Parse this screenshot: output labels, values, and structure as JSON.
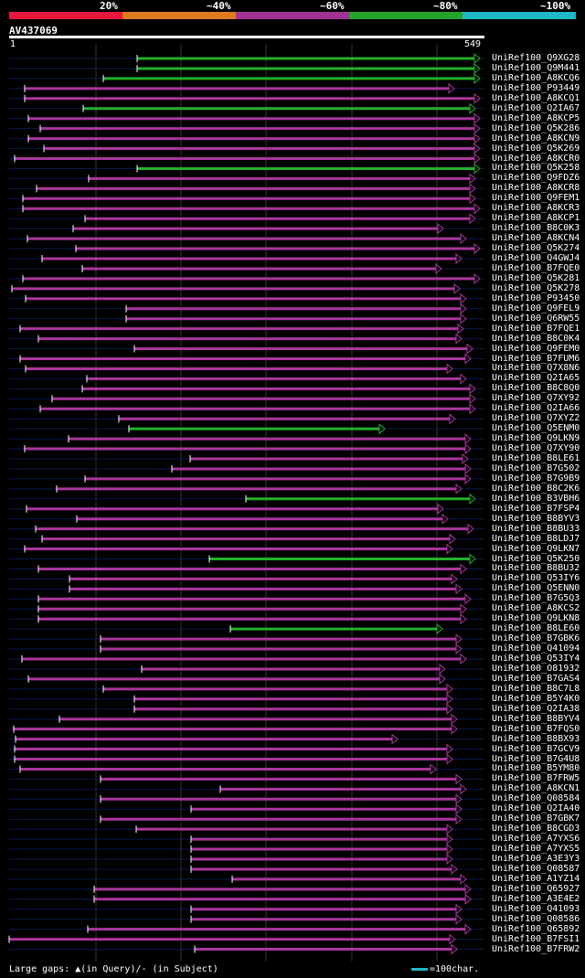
{
  "legend": {
    "segments": [
      {
        "label": "20%",
        "color": "#e8173d"
      },
      {
        "label": "~40%",
        "color": "#e07a1f"
      },
      {
        "label": "~60%",
        "color": "#a23293"
      },
      {
        "label": "~80%",
        "color": "#22a52a"
      },
      {
        "label": "~100%",
        "color": "#1fb8c6"
      }
    ]
  },
  "query": {
    "id": "AV437069",
    "start": "1",
    "end": "549"
  },
  "hits": [
    {
      "name": "UniRef100_Q9XG28",
      "start": 150,
      "end": 525,
      "color": "green"
    },
    {
      "name": "UniRef100_Q9M441",
      "start": 150,
      "end": 525,
      "color": "green"
    },
    {
      "name": "UniRef100_A8KCQ6",
      "start": 113,
      "end": 525,
      "color": "green"
    },
    {
      "name": "UniRef100_P93449",
      "start": 27,
      "end": 497,
      "color": "purple"
    },
    {
      "name": "UniRef100_A8KCQ1",
      "start": 27,
      "end": 525,
      "color": "purple"
    },
    {
      "name": "UniRef100_Q2IA67",
      "start": 91,
      "end": 520,
      "color": "green"
    },
    {
      "name": "UniRef100_A8KCP5",
      "start": 31,
      "end": 525,
      "color": "purple"
    },
    {
      "name": "UniRef100_Q5K286",
      "start": 44,
      "end": 525,
      "color": "purple"
    },
    {
      "name": "UniRef100_A8KCN9",
      "start": 31,
      "end": 525,
      "color": "purple"
    },
    {
      "name": "UniRef100_Q5K269",
      "start": 48,
      "end": 525,
      "color": "purple"
    },
    {
      "name": "UniRef100_A8KCR0",
      "start": 16,
      "end": 525,
      "color": "purple"
    },
    {
      "name": "UniRef100_Q5K258",
      "start": 150,
      "end": 525,
      "color": "green"
    },
    {
      "name": "UniRef100_Q9FDZ6",
      "start": 97,
      "end": 520,
      "color": "purple"
    },
    {
      "name": "UniRef100_A8KCR8",
      "start": 40,
      "end": 520,
      "color": "purple"
    },
    {
      "name": "UniRef100_Q9FEM1",
      "start": 25,
      "end": 520,
      "color": "purple"
    },
    {
      "name": "UniRef100_A8KCR3",
      "start": 25,
      "end": 525,
      "color": "purple"
    },
    {
      "name": "UniRef100_A8KCP1",
      "start": 93,
      "end": 520,
      "color": "purple"
    },
    {
      "name": "UniRef100_B8C0K3",
      "start": 80,
      "end": 485,
      "color": "purple"
    },
    {
      "name": "UniRef100_A8KCN4",
      "start": 30,
      "end": 510,
      "color": "purple"
    },
    {
      "name": "UniRef100_Q5K274",
      "start": 83,
      "end": 525,
      "color": "purple"
    },
    {
      "name": "UniRef100_Q4GWJ4",
      "start": 46,
      "end": 505,
      "color": "purple"
    },
    {
      "name": "UniRef100_B7FQE0",
      "start": 90,
      "end": 483,
      "color": "purple"
    },
    {
      "name": "UniRef100_Q5K281",
      "start": 25,
      "end": 525,
      "color": "purple"
    },
    {
      "name": "UniRef100_Q5K278",
      "start": 13,
      "end": 503,
      "color": "purple"
    },
    {
      "name": "UniRef100_P93450",
      "start": 28,
      "end": 510,
      "color": "purple"
    },
    {
      "name": "UniRef100_Q9FEL9",
      "start": 138,
      "end": 510,
      "color": "purple"
    },
    {
      "name": "UniRef100_Q6RW55",
      "start": 138,
      "end": 510,
      "color": "purple"
    },
    {
      "name": "UniRef100_B7FQE1",
      "start": 22,
      "end": 507,
      "color": "purple"
    },
    {
      "name": "UniRef100_B8C0K4",
      "start": 42,
      "end": 505,
      "color": "purple"
    },
    {
      "name": "UniRef100_Q9FEM0",
      "start": 147,
      "end": 517,
      "color": "purple"
    },
    {
      "name": "UniRef100_B7FUM6",
      "start": 22,
      "end": 515,
      "color": "purple"
    },
    {
      "name": "UniRef100_Q7X8N6",
      "start": 28,
      "end": 495,
      "color": "purple"
    },
    {
      "name": "UniRef100_Q2IA65",
      "start": 95,
      "end": 510,
      "color": "purple"
    },
    {
      "name": "UniRef100_B8C8Q0",
      "start": 90,
      "end": 520,
      "color": "purple"
    },
    {
      "name": "UniRef100_Q7XY92",
      "start": 57,
      "end": 520,
      "color": "purple"
    },
    {
      "name": "UniRef100_Q2IA66",
      "start": 44,
      "end": 520,
      "color": "purple"
    },
    {
      "name": "UniRef100_Q7XYZ2",
      "start": 130,
      "end": 498,
      "color": "purple"
    },
    {
      "name": "UniRef100_Q5ENM0",
      "start": 141,
      "end": 421,
      "color": "green"
    },
    {
      "name": "UniRef100_Q9LKN9",
      "start": 75,
      "end": 515,
      "color": "purple"
    },
    {
      "name": "UniRef100_Q7XY90",
      "start": 27,
      "end": 515,
      "color": "purple"
    },
    {
      "name": "UniRef100_B8LE61",
      "start": 208,
      "end": 512,
      "color": "purple"
    },
    {
      "name": "UniRef100_B7G502",
      "start": 188,
      "end": 515,
      "color": "purple"
    },
    {
      "name": "UniRef100_B7G9B9",
      "start": 93,
      "end": 515,
      "color": "purple"
    },
    {
      "name": "UniRef100_B8C2K6",
      "start": 62,
      "end": 505,
      "color": "purple"
    },
    {
      "name": "UniRef100_B3VBH6",
      "start": 269,
      "end": 520,
      "color": "green"
    },
    {
      "name": "UniRef100_B7FSP4",
      "start": 29,
      "end": 485,
      "color": "purple"
    },
    {
      "name": "UniRef100_B8BYV3",
      "start": 84,
      "end": 490,
      "color": "purple"
    },
    {
      "name": "UniRef100_B8BU33",
      "start": 39,
      "end": 518,
      "color": "purple"
    },
    {
      "name": "UniRef100_B8LDJ7",
      "start": 46,
      "end": 498,
      "color": "purple"
    },
    {
      "name": "UniRef100_Q9LKN7",
      "start": 27,
      "end": 495,
      "color": "purple"
    },
    {
      "name": "UniRef100_Q5K250",
      "start": 229,
      "end": 520,
      "color": "green"
    },
    {
      "name": "UniRef100_B8BU32",
      "start": 42,
      "end": 510,
      "color": "purple"
    },
    {
      "name": "UniRef100_Q53IY6",
      "start": 76,
      "end": 500,
      "color": "purple"
    },
    {
      "name": "UniRef100_Q5ENN0",
      "start": 76,
      "end": 505,
      "color": "purple"
    },
    {
      "name": "UniRef100_B7G5Q3",
      "start": 42,
      "end": 515,
      "color": "purple"
    },
    {
      "name": "UniRef100_A8KCS2",
      "start": 42,
      "end": 510,
      "color": "purple"
    },
    {
      "name": "UniRef100_Q9LKN8",
      "start": 42,
      "end": 510,
      "color": "purple"
    },
    {
      "name": "UniRef100_B8LE60",
      "start": 252,
      "end": 484,
      "color": "green"
    },
    {
      "name": "UniRef100_B7GBK6",
      "start": 110,
      "end": 505,
      "color": "purple"
    },
    {
      "name": "UniRef100_Q41094",
      "start": 110,
      "end": 505,
      "color": "purple"
    },
    {
      "name": "UniRef100_Q53IY4",
      "start": 24,
      "end": 510,
      "color": "purple"
    },
    {
      "name": "UniRef100_O81932",
      "start": 155,
      "end": 487,
      "color": "purple"
    },
    {
      "name": "UniRef100_B7GAS4",
      "start": 31,
      "end": 487,
      "color": "purple"
    },
    {
      "name": "UniRef100_B8C7L8",
      "start": 113,
      "end": 495,
      "color": "purple"
    },
    {
      "name": "UniRef100_B5Y4K0",
      "start": 147,
      "end": 495,
      "color": "purple"
    },
    {
      "name": "UniRef100_Q2IA38",
      "start": 147,
      "end": 495,
      "color": "purple"
    },
    {
      "name": "UniRef100_B8BYV4",
      "start": 65,
      "end": 500,
      "color": "purple"
    },
    {
      "name": "UniRef100_B7FQS0",
      "start": 15,
      "end": 500,
      "color": "purple"
    },
    {
      "name": "UniRef100_B8BX93",
      "start": 17,
      "end": 435,
      "color": "purple"
    },
    {
      "name": "UniRef100_B7GCV9",
      "start": 16,
      "end": 495,
      "color": "purple"
    },
    {
      "name": "UniRef100_B7G4U8",
      "start": 16,
      "end": 495,
      "color": "purple"
    },
    {
      "name": "UniRef100_B5YM80",
      "start": 22,
      "end": 477,
      "color": "purple"
    },
    {
      "name": "UniRef100_B7FRW5",
      "start": 110,
      "end": 505,
      "color": "purple"
    },
    {
      "name": "UniRef100_A8KCN1",
      "start": 241,
      "end": 510,
      "color": "purple"
    },
    {
      "name": "UniRef100_Q08584",
      "start": 110,
      "end": 505,
      "color": "purple"
    },
    {
      "name": "UniRef100_Q2IA40",
      "start": 209,
      "end": 505,
      "color": "purple"
    },
    {
      "name": "UniRef100_B7GBK7",
      "start": 110,
      "end": 505,
      "color": "purple"
    },
    {
      "name": "UniRef100_B8CGD3",
      "start": 149,
      "end": 495,
      "color": "purple"
    },
    {
      "name": "UniRef100_A7YXS6",
      "start": 209,
      "end": 495,
      "color": "purple"
    },
    {
      "name": "UniRef100_A7YXS5",
      "start": 209,
      "end": 495,
      "color": "purple"
    },
    {
      "name": "UniRef100_A3E3Y3",
      "start": 209,
      "end": 495,
      "color": "purple"
    },
    {
      "name": "UniRef100_Q08587",
      "start": 209,
      "end": 500,
      "color": "purple"
    },
    {
      "name": "UniRef100_A1YZ14",
      "start": 254,
      "end": 510,
      "color": "purple"
    },
    {
      "name": "UniRef100_Q65927",
      "start": 103,
      "end": 515,
      "color": "purple"
    },
    {
      "name": "UniRef100_A3E4E2",
      "start": 103,
      "end": 515,
      "color": "purple"
    },
    {
      "name": "UniRef100_Q41093",
      "start": 209,
      "end": 505,
      "color": "purple"
    },
    {
      "name": "UniRef100_Q08586",
      "start": 209,
      "end": 505,
      "color": "purple"
    },
    {
      "name": "UniRef100_Q65892",
      "start": 96,
      "end": 515,
      "color": "purple"
    },
    {
      "name": "UniRef100_B7FSI1",
      "start": 10,
      "end": 498,
      "color": "purple"
    },
    {
      "name": "UniRef100_B7FRW2",
      "start": 213,
      "end": 500,
      "color": "purple"
    }
  ],
  "footer": {
    "gaps_text": "Large gaps: ▲(in Query)/- (in Subject)",
    "scale_text": "=100char."
  }
}
